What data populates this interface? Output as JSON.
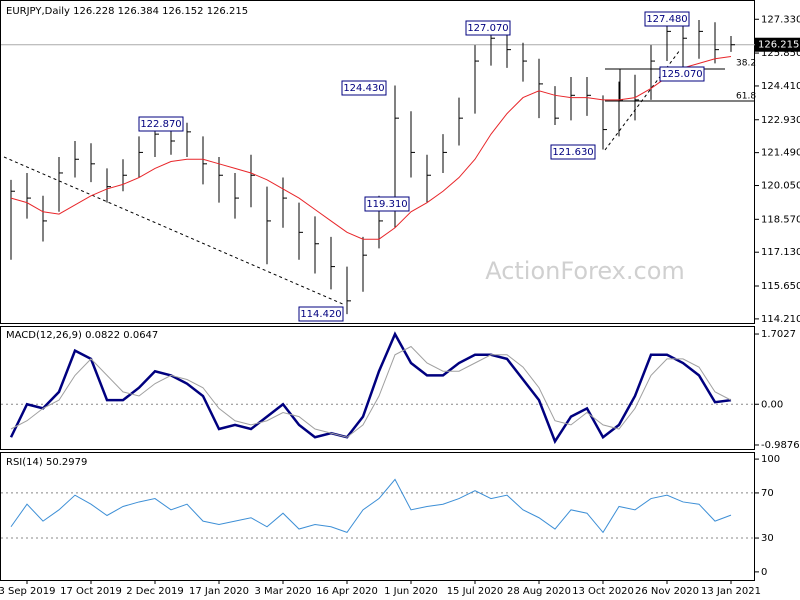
{
  "chart_data": [
    {
      "type": "hlc",
      "title": "EURJPY,Daily 126.228 126.384 126.152 126.215",
      "categories": [
        null,
        "3 Sep 2019",
        null,
        null,
        null,
        "17 Oct 2019",
        null,
        null,
        null,
        "2 Dec 2019",
        null,
        null,
        null,
        "17 Jan 2020",
        null,
        null,
        null,
        "3 Mar 2020",
        null,
        null,
        null,
        "16 Apr 2020",
        null,
        null,
        null,
        "1 Jun 2020",
        null,
        null,
        null,
        "15 Jul 2020",
        null,
        null,
        null,
        "28 Aug 2020",
        null,
        null,
        null,
        "13 Oct 2020",
        null,
        null,
        null,
        "26 Nov 2020",
        null,
        null,
        null,
        "13 Jan 2021"
      ],
      "high": [
        120.3,
        120.6,
        119.6,
        121.3,
        122.0,
        121.9,
        120.8,
        121.2,
        122.2,
        122.5,
        122.87,
        122.8,
        122.2,
        121.3,
        120.6,
        121.4,
        120.0,
        120.4,
        119.3,
        118.7,
        117.8,
        116.5,
        117.8,
        119.6,
        124.43,
        123.3,
        121.4,
        122.3,
        123.9,
        126.2,
        127.07,
        126.9,
        126.3,
        125.6,
        124.4,
        124.8,
        124.8,
        124.0,
        124.6,
        124.9,
        126.2,
        127.3,
        127.48,
        127.3,
        127.2,
        126.6
      ],
      "low": [
        116.8,
        118.6,
        117.6,
        118.9,
        120.4,
        120.2,
        119.3,
        119.8,
        120.4,
        121.3,
        121.4,
        121.3,
        120.1,
        119.3,
        118.6,
        119.1,
        116.6,
        118.2,
        116.8,
        116.2,
        115.5,
        114.42,
        115.4,
        117.3,
        118.2,
        120.4,
        119.31,
        120.6,
        121.8,
        123.2,
        125.3,
        125.2,
        124.6,
        123.0,
        122.7,
        122.9,
        123.1,
        121.63,
        122.2,
        122.9,
        123.8,
        125.5,
        125.07,
        125.6,
        125.4,
        125.9
      ],
      "close": [
        119.8,
        119.5,
        118.5,
        120.6,
        121.2,
        121.0,
        120.0,
        120.5,
        121.5,
        122.3,
        122.0,
        122.4,
        121.0,
        120.5,
        119.5,
        120.5,
        118.5,
        119.5,
        118.0,
        117.5,
        116.5,
        115.0,
        117.0,
        118.5,
        123.0,
        121.5,
        120.5,
        121.5,
        123.0,
        125.5,
        126.5,
        126.0,
        125.5,
        124.5,
        123.0,
        124.0,
        124.0,
        122.5,
        123.8,
        123.8,
        125.5,
        126.8,
        126.5,
        126.8,
        126.0,
        126.215
      ],
      "color": "#000000",
      "ma": {
        "color": "#e8262a",
        "values": [
          119.5,
          119.3,
          118.9,
          118.8,
          119.2,
          119.6,
          119.9,
          120.1,
          120.4,
          120.8,
          121.1,
          121.2,
          121.2,
          121.0,
          120.8,
          120.6,
          120.3,
          119.9,
          119.5,
          119.0,
          118.5,
          118.0,
          117.7,
          117.7,
          118.2,
          118.9,
          119.3,
          119.8,
          120.4,
          121.2,
          122.3,
          123.2,
          123.9,
          124.2,
          124.0,
          123.9,
          123.9,
          123.8,
          123.8,
          123.9,
          124.3,
          124.8,
          125.2,
          125.4,
          125.6,
          125.7
        ]
      },
      "last_price": 126.215,
      "ylim": [
        114.03,
        128.13
      ],
      "yticks": [
        {
          "value": 127.33,
          "label": "127.330"
        },
        {
          "value": 125.85,
          "label": "125.850"
        },
        {
          "value": 124.41,
          "label": "124.410"
        },
        {
          "value": 122.93,
          "label": "122.930"
        },
        {
          "value": 121.49,
          "label": "121.490"
        },
        {
          "value": 120.05,
          "label": "120.050"
        },
        {
          "value": 118.57,
          "label": "118.570"
        },
        {
          "value": 117.13,
          "label": "117.130"
        },
        {
          "value": 115.65,
          "label": "115.650"
        },
        {
          "value": 114.21,
          "label": "114.210"
        }
      ],
      "annotations": [
        "127.070",
        "127.480",
        "124.430",
        "122.870",
        "125.070",
        "121.630",
        "119.310",
        "114.420"
      ],
      "fib_labels": [
        "38.2",
        "61.8"
      ],
      "watermark": "ActionForex.com"
    },
    {
      "type": "line",
      "title": "MACD(12,26,9) 0.0822 0.0647",
      "series": [
        {
          "color": "#00007f",
          "width": 2.5,
          "values": [
            -0.8,
            0.0,
            -0.1,
            0.3,
            1.3,
            1.1,
            0.1,
            0.1,
            0.4,
            0.8,
            0.7,
            0.5,
            0.2,
            -0.6,
            -0.5,
            -0.6,
            -0.3,
            0.0,
            -0.5,
            -0.8,
            -0.7,
            -0.8,
            -0.3,
            0.8,
            1.7,
            1.0,
            0.7,
            0.7,
            1.0,
            1.2,
            1.2,
            1.1,
            0.6,
            0.1,
            -0.9,
            -0.3,
            -0.1,
            -0.8,
            -0.5,
            0.2,
            1.2,
            1.2,
            1.0,
            0.7,
            0.05,
            0.1
          ]
        },
        {
          "color": "#a0a0a0",
          "width": 1,
          "values": [
            -0.6,
            -0.4,
            -0.1,
            0.1,
            0.7,
            1.1,
            0.7,
            0.3,
            0.2,
            0.5,
            0.7,
            0.6,
            0.4,
            -0.1,
            -0.4,
            -0.5,
            -0.4,
            -0.2,
            -0.3,
            -0.6,
            -0.7,
            -0.8,
            -0.5,
            0.2,
            1.2,
            1.4,
            1.0,
            0.8,
            0.8,
            1.0,
            1.2,
            1.2,
            0.9,
            0.4,
            -0.4,
            -0.5,
            -0.2,
            -0.5,
            -0.6,
            -0.1,
            0.7,
            1.1,
            1.1,
            0.9,
            0.3,
            0.1
          ]
        }
      ],
      "ylim": [
        -1.085,
        1.873
      ],
      "yticks": [
        1.7027,
        {
          "value": 0,
          "label": "0.00"
        },
        -0.9876
      ],
      "levels": [
        0
      ]
    },
    {
      "type": "line",
      "title": "RSI(14) 50.2979",
      "series": [
        {
          "color": "#3d8fd6",
          "width": 1,
          "values": [
            40,
            60,
            45,
            55,
            68,
            60,
            50,
            58,
            62,
            65,
            55,
            60,
            45,
            42,
            45,
            48,
            40,
            52,
            38,
            42,
            40,
            35,
            55,
            65,
            82,
            55,
            58,
            60,
            65,
            72,
            65,
            68,
            55,
            48,
            38,
            55,
            52,
            35,
            58,
            55,
            65,
            68,
            62,
            60,
            45,
            50.3
          ]
        }
      ],
      "ylim": [
        -7.2,
        105.4
      ],
      "yticks": [
        100,
        70,
        30,
        0
      ],
      "levels": [
        70,
        30
      ]
    }
  ]
}
